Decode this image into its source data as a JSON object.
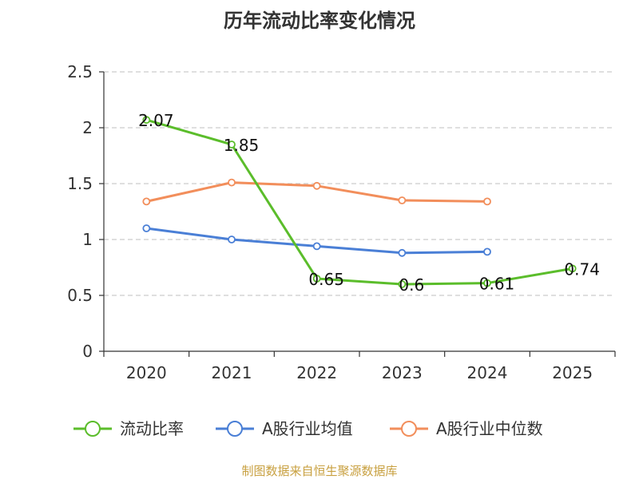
{
  "chart_data": {
    "type": "line",
    "title": "历年流动比率变化情况",
    "categories": [
      "2020",
      "2021",
      "2022",
      "2023",
      "2024",
      "2025"
    ],
    "ylim": [
      0,
      2.5
    ],
    "yticks": [
      "0",
      "0.5",
      "1",
      "1.5",
      "2",
      "2.5"
    ],
    "grid": true,
    "legend_position": "bottom",
    "series": [
      {
        "name": "流动比率",
        "color": "#5bbd2b",
        "values": [
          2.07,
          1.85,
          0.65,
          0.6,
          0.61,
          0.74
        ],
        "labels": [
          "2.07",
          "1.85",
          "0.65",
          "0.6",
          "0.61",
          "0.74"
        ]
      },
      {
        "name": "A股行业均值",
        "color": "#4a7fd6",
        "values": [
          1.1,
          1.0,
          0.94,
          0.88,
          0.89,
          null
        ]
      },
      {
        "name": "A股行业中位数",
        "color": "#f28e5b",
        "values": [
          1.34,
          1.51,
          1.48,
          1.35,
          1.34,
          null
        ]
      }
    ]
  },
  "source": {
    "text": "制图数据来自恒生聚源数据库",
    "color": "#c8a040"
  }
}
